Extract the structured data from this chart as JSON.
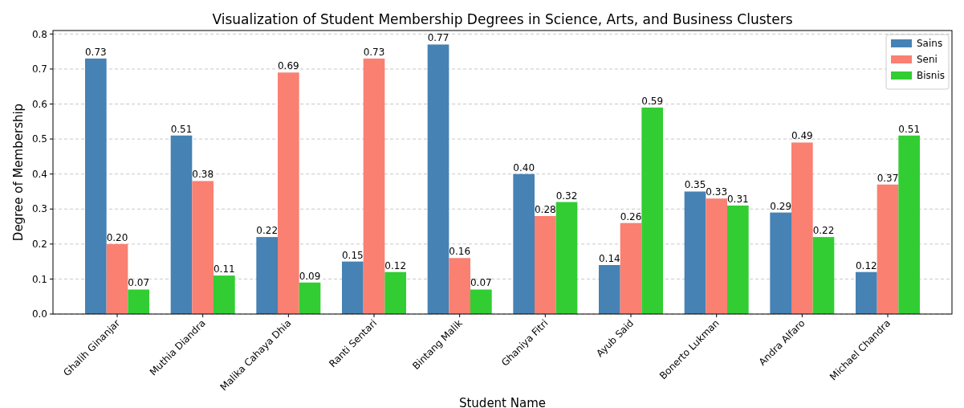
{
  "chart_data": {
    "type": "bar",
    "title": "Visualization of Student Membership Degrees in Science, Arts, and Business Clusters",
    "xlabel": "Student Name",
    "ylabel": "Degree of Membership",
    "categories": [
      "Ghalih Ginanjar",
      "Muthia Diandra",
      "Malika Cahaya Dhia",
      "Ranti Sentari",
      "Bintang Malik",
      "Ghaniya Fitri",
      "Ayub Said",
      "Bonerto Lukman",
      "Andra Alfaro",
      "Michael Chandra"
    ],
    "series": [
      {
        "name": "Sains",
        "color": "#4682b4",
        "values": [
          0.73,
          0.51,
          0.22,
          0.15,
          0.77,
          0.4,
          0.14,
          0.35,
          0.29,
          0.12
        ],
        "value_labels": [
          "0.73",
          "0.51",
          "0.22",
          "0.15",
          "0.77",
          "0.40",
          "0.14",
          "0.35",
          "0.29",
          "0.12"
        ]
      },
      {
        "name": "Seni",
        "color": "#fa8072",
        "values": [
          0.2,
          0.38,
          0.69,
          0.73,
          0.16,
          0.28,
          0.26,
          0.33,
          0.49,
          0.37
        ],
        "value_labels": [
          "0.20",
          "0.38",
          "0.69",
          "0.73",
          "0.16",
          "0.28",
          "0.26",
          "0.33",
          "0.49",
          "0.37"
        ]
      },
      {
        "name": "Bisnis",
        "color": "#32cd32",
        "values": [
          0.07,
          0.11,
          0.09,
          0.12,
          0.07,
          0.32,
          0.59,
          0.31,
          0.22,
          0.51
        ],
        "value_labels": [
          "0.07",
          "0.11",
          "0.09",
          "0.12",
          "0.07",
          "0.32",
          "0.59",
          "0.31",
          "0.22",
          "0.51"
        ]
      }
    ],
    "ylim": [
      0,
      0.81
    ],
    "yticks": [
      {
        "value": 0,
        "label": "0.0"
      },
      {
        "value": 0.1,
        "label": "0.1"
      },
      {
        "value": 0.2,
        "label": "0.2"
      },
      {
        "value": 0.3,
        "label": "0.3"
      },
      {
        "value": 0.4,
        "label": "0.4"
      },
      {
        "value": 0.5,
        "label": "0.5"
      },
      {
        "value": 0.6,
        "label": "0.6"
      },
      {
        "value": 0.7,
        "label": "0.7"
      },
      {
        "value": 0.8,
        "label": "0.8"
      }
    ],
    "grid": "y",
    "legend": "top right"
  }
}
